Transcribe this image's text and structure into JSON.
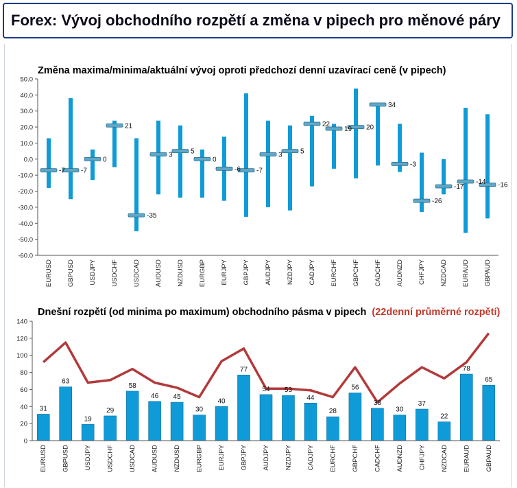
{
  "header": {
    "title": "Forex: Vývoj obchodního rozpětí a změna v pipech pro měnové páry"
  },
  "colors": {
    "bar": "#0f9bd7",
    "line": "#b23a3a",
    "header_border": "#1a3a8a",
    "accent_red": "#c0392b",
    "marker": "#5fa8c8"
  },
  "chart_data": [
    {
      "type": "bar",
      "subtype": "range-with-marker",
      "title": "Změna maxima/minima/aktuální vývoj oproti předchozí denní uzavírací ceně (v pipech)",
      "ylim": [
        -60,
        50
      ],
      "yticks": [
        "50.0",
        "40.0",
        "30.0",
        "20.0",
        "10.0",
        "0.0",
        "-10.0",
        "-20.0",
        "-30.0",
        "-40.0",
        "-50.0",
        "-60.0"
      ],
      "grid": false,
      "categories": [
        "EURUSD",
        "GBPUSD",
        "USDJPY",
        "USDCHF",
        "USDCAD",
        "AUDUSD",
        "NZDUSD",
        "EURGBP",
        "EURJPY",
        "GBPJPY",
        "AUDJPY",
        "NZDJPY",
        "CADJPY",
        "EURCHF",
        "GBPCHF",
        "CADCHF",
        "AUDNZD",
        "CHFJPY",
        "NZDCAD",
        "EURAUD",
        "GBPAUD"
      ],
      "series": [
        {
          "role": "high",
          "values": [
            13,
            38,
            6,
            24,
            13,
            24,
            21,
            6,
            14,
            41,
            24,
            21,
            27,
            22,
            44,
            35,
            22,
            4,
            0,
            32,
            28
          ]
        },
        {
          "role": "low",
          "values": [
            -18,
            -25,
            -13,
            -5,
            -45,
            -22,
            -24,
            -24,
            -26,
            -36,
            -30,
            -32,
            -17,
            -6,
            -12,
            -4,
            -8,
            -33,
            -22,
            -46,
            -37
          ]
        },
        {
          "role": "current",
          "values": [
            -7,
            -7,
            0,
            21,
            -35,
            3,
            5,
            0,
            -6,
            -7,
            3,
            5,
            22,
            19,
            20,
            34,
            -3,
            -26,
            -17,
            -14,
            -16
          ]
        }
      ],
      "labels": [
        "-7",
        "-7",
        "0",
        "21",
        "-35",
        "3",
        "5",
        "0",
        "-6",
        "-7",
        "3",
        "5",
        "22",
        "19",
        "20",
        "34",
        "-3",
        "-26",
        "-17",
        "-14",
        "-16"
      ]
    },
    {
      "type": "bar",
      "title_main": "Dnešní rozpětí (od minima po maximum) obchodního pásma v pipech",
      "title_accent": "(22denní průměrné rozpětí)",
      "ylim": [
        0,
        140
      ],
      "yticks": [
        "140",
        "120",
        "100",
        "80",
        "60",
        "40",
        "20",
        "0"
      ],
      "grid": false,
      "categories": [
        "EURUSD",
        "GBPUSD",
        "USDJPY",
        "USDCHF",
        "USDCAD",
        "AUDUSD",
        "NZDUSD",
        "EURGBP",
        "EURJPY",
        "GBPJPY",
        "AUDJPY",
        "NZDJPY",
        "CADJPY",
        "EURCHF",
        "GBPCHF",
        "CADCHF",
        "AUDNZD",
        "CHFJPY",
        "NZDCAD",
        "EURAUD",
        "GBPAUD"
      ],
      "series": [
        {
          "role": "today_range",
          "values": [
            31,
            63,
            19,
            29,
            58,
            46,
            45,
            30,
            40,
            77,
            54,
            53,
            44,
            28,
            56,
            38,
            30,
            37,
            22,
            78,
            65
          ]
        },
        {
          "role": "avg_22d",
          "values": [
            92,
            115,
            68,
            71,
            84,
            68,
            62,
            51,
            93,
            108,
            61,
            61,
            59,
            51,
            86,
            45,
            67,
            86,
            73,
            92,
            126
          ]
        }
      ],
      "labels": [
        "31",
        "63",
        "19",
        "29",
        "58",
        "46",
        "45",
        "30",
        "40",
        "77",
        "54",
        "53",
        "44",
        "28",
        "56",
        "38",
        "30",
        "37",
        "22",
        "78",
        "65"
      ]
    }
  ]
}
